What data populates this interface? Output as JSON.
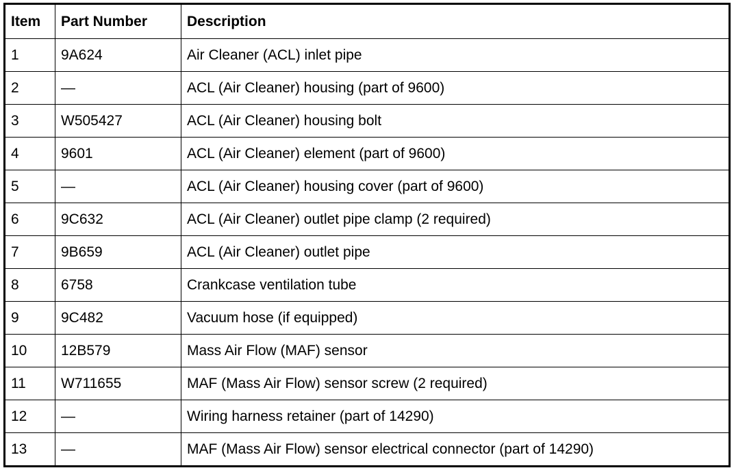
{
  "headers": {
    "item": "Item",
    "part_number": "Part Number",
    "description": "Description"
  },
  "rows": [
    {
      "item": "1",
      "part": "9A624",
      "desc": "Air Cleaner (ACL) inlet pipe"
    },
    {
      "item": "2",
      "part": "—",
      "desc": "ACL (Air Cleaner) housing (part of 9600)"
    },
    {
      "item": "3",
      "part": "W505427",
      "desc": "ACL (Air Cleaner) housing bolt"
    },
    {
      "item": "4",
      "part": "9601",
      "desc": "ACL (Air Cleaner) element (part of 9600)"
    },
    {
      "item": "5",
      "part": "—",
      "desc": "ACL (Air Cleaner) housing cover (part of 9600)"
    },
    {
      "item": "6",
      "part": "9C632",
      "desc": "ACL (Air Cleaner) outlet pipe clamp (2 required)"
    },
    {
      "item": "7",
      "part": "9B659",
      "desc": "ACL (Air Cleaner) outlet pipe"
    },
    {
      "item": "8",
      "part": "6758",
      "desc": "Crankcase ventilation tube"
    },
    {
      "item": "9",
      "part": "9C482",
      "desc": "Vacuum hose (if equipped)"
    },
    {
      "item": "10",
      "part": "12B579",
      "desc": "Mass Air Flow (MAF) sensor"
    },
    {
      "item": "11",
      "part": "W711655",
      "desc": "MAF (Mass Air Flow) sensor screw (2 required)"
    },
    {
      "item": "12",
      "part": "—",
      "desc": "Wiring harness retainer (part of 14290)"
    },
    {
      "item": "13",
      "part": "—",
      "desc": "MAF (Mass Air Flow) sensor electrical connector (part of 14290)"
    }
  ]
}
